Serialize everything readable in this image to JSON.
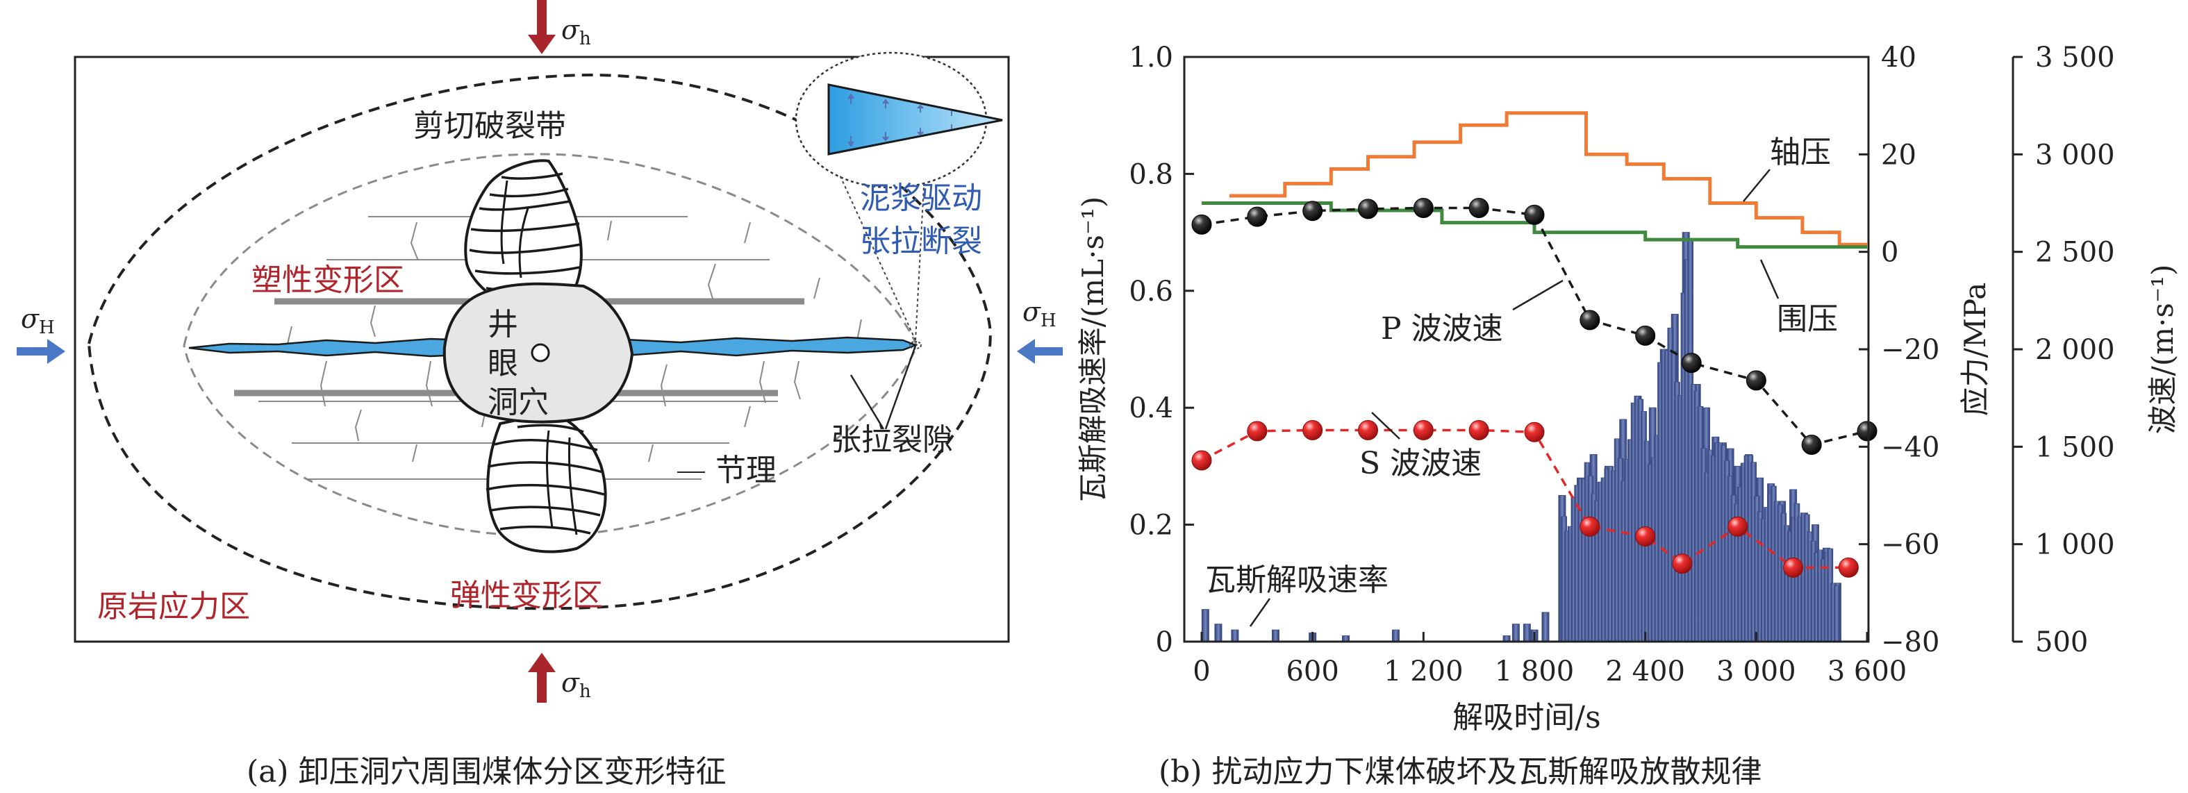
{
  "panel_a": {
    "caption": "(a) 卸压洞穴周围煤体分区变形特征",
    "labels": {
      "sigma_h": "σh",
      "sigma_H": "σH",
      "shear_zone": "剪切破裂带",
      "plastic_zone": "塑性变形区",
      "elastic_zone": "弹性变形区",
      "original_zone": "原岩应力区",
      "mud_tension_1": "泥浆驱动",
      "mud_tension_2": "张拉断裂",
      "tension_gap": "张拉裂隙",
      "joint": "节理",
      "cavity_1": "井",
      "cavity_2": "眼",
      "cavity_3": "洞穴"
    },
    "colors": {
      "stress_arrow_v": "#a8262b",
      "stress_arrow_h": "#4a78c4",
      "fracture": "#4aa7e0",
      "zone_text": "#b0252b",
      "mud_text": "#2f5bb0"
    }
  },
  "panel_b": {
    "caption": "(b) 扰动应力下煤体破坏及瓦斯解吸放散规律",
    "series_labels": {
      "axial": "轴压",
      "confining": "围压",
      "p_wave": "P 波波速",
      "s_wave": "S 波波速",
      "gas": "瓦斯解吸速率"
    },
    "colors": {
      "axial": "#f07b35",
      "confining": "#3f8a3f",
      "p_wave": "#1a1a1a",
      "s_wave": "#e02828",
      "gas": "#3d4f86"
    }
  },
  "chart_data": {
    "type": "line",
    "xlabel": "解吸时间/s",
    "xlim": [
      0,
      3600
    ],
    "xticks": [
      0,
      600,
      1200,
      1800,
      2400,
      3000,
      3600
    ],
    "xtick_labels": [
      "0",
      "600",
      "1 200",
      "1 800",
      "2 400",
      "3 000",
      "3 600"
    ],
    "axes": {
      "left": {
        "label": "瓦斯解吸速率/(mL·s⁻¹)",
        "lim": [
          0,
          1.0
        ],
        "ticks": [
          "0",
          "0.2",
          "0.4",
          "0.6",
          "0.8",
          "1.0"
        ]
      },
      "right1": {
        "label": "应力/MPa",
        "lim": [
          -80,
          40
        ],
        "ticks": [
          "−80",
          "−60",
          "−40",
          "−20",
          "0",
          "20",
          "40"
        ]
      },
      "right2": {
        "label": "波速/(m·s⁻¹)",
        "lim": [
          500,
          3500
        ],
        "ticks": [
          "500",
          "1 000",
          "1 500",
          "2 000",
          "2 500",
          "3 000",
          "3 500"
        ]
      }
    },
    "series": [
      {
        "name": "轴压",
        "axis": "right1",
        "x": [
          0,
          150,
          150,
          450,
          450,
          700,
          700,
          900,
          900,
          1150,
          1150,
          1400,
          1400,
          1650,
          1650,
          2080,
          2080,
          2300,
          2300,
          2500,
          2500,
          2750,
          2750,
          3000,
          3000,
          3250,
          3250,
          3450,
          3450,
          3600
        ],
        "y": [
          null,
          null,
          11.5,
          11.5,
          14,
          14,
          17,
          17,
          19.5,
          19.5,
          22.5,
          22.5,
          26,
          26,
          28.5,
          28.5,
          20,
          20,
          18,
          18,
          15,
          15,
          10,
          10,
          7,
          7,
          4,
          4,
          1.5,
          1.5
        ]
      },
      {
        "name": "围压",
        "axis": "right1",
        "x": [
          0,
          700,
          700,
          1300,
          1300,
          1800,
          1800,
          2400,
          2400,
          2900,
          2900,
          3600
        ],
        "y": [
          10,
          10,
          8.5,
          8.5,
          6,
          6,
          4,
          4,
          2.5,
          2.5,
          1,
          1
        ]
      },
      {
        "name": "P 波波速",
        "axis": "right2",
        "x": [
          0,
          300,
          600,
          900,
          1200,
          1500,
          1800,
          2100,
          2400,
          2650,
          3000,
          3300,
          3600
        ],
        "y": [
          2640,
          2680,
          2710,
          2720,
          2725,
          2725,
          2690,
          2150,
          2070,
          1930,
          1840,
          1510,
          1580
        ]
      },
      {
        "name": "S 波波速",
        "axis": "right2",
        "x": [
          0,
          300,
          600,
          900,
          1200,
          1500,
          1800,
          2100,
          2400,
          2600,
          2900,
          3200,
          3500
        ],
        "y": [
          1430,
          1580,
          1585,
          1585,
          1585,
          1585,
          1575,
          1090,
          1040,
          900,
          1090,
          880,
          880
        ]
      },
      {
        "name": "瓦斯解吸速率",
        "axis": "left",
        "type": "bar",
        "x": [
          20,
          90,
          180,
          400,
          600,
          780,
          1050,
          1650,
          1700,
          1760,
          1800,
          1860,
          1950,
          2050,
          2120,
          2200,
          2280,
          2360,
          2440,
          2500,
          2560,
          2620,
          2680,
          2730,
          2780,
          2820,
          2860,
          2900,
          2960,
          3020,
          3080,
          3140,
          3200,
          3260,
          3320,
          3380,
          3440
        ],
        "y": [
          0.055,
          0.03,
          0.02,
          0.02,
          0.015,
          0.01,
          0.02,
          0.01,
          0.03,
          0.03,
          0.02,
          0.05,
          0.25,
          0.28,
          0.32,
          0.3,
          0.38,
          0.42,
          0.4,
          0.5,
          0.56,
          0.7,
          0.44,
          0.4,
          0.35,
          0.34,
          0.33,
          0.3,
          0.32,
          0.28,
          0.27,
          0.24,
          0.26,
          0.22,
          0.2,
          0.16,
          0.1
        ]
      }
    ]
  }
}
